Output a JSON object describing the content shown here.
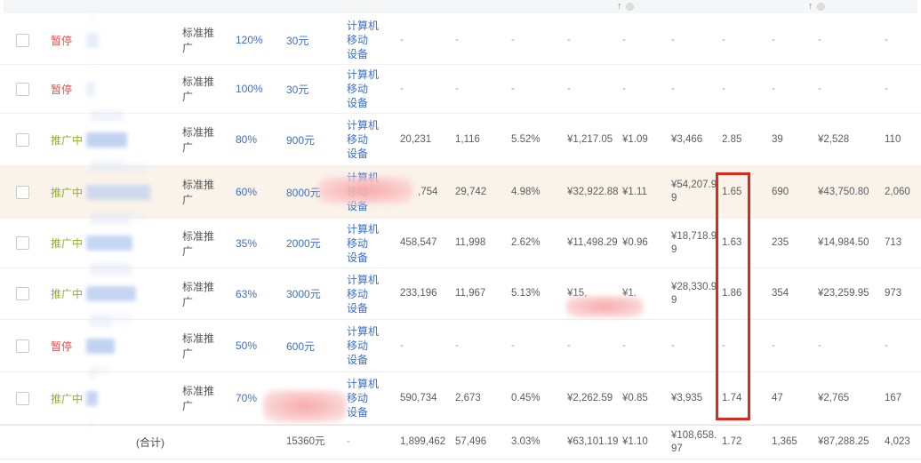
{
  "header_strip": {
    "sort_icons": [
      {
        "glyph": "↑",
        "badge": "help-circle"
      },
      {
        "glyph": "↑",
        "badge": "help-circle"
      }
    ]
  },
  "table": {
    "device_value": "计算机 移动设备",
    "device_line1": "计算机 移动",
    "device_line2": "设备",
    "rows": [
      {
        "status": "暂停",
        "status_type": "paused",
        "type": "标准推广",
        "ratio": "120%",
        "budget": "30元",
        "metrics": [
          "-",
          "-",
          "-",
          "-",
          "-",
          "-",
          "-",
          "-",
          "-",
          "-"
        ]
      },
      {
        "status": "暂停",
        "status_type": "paused",
        "type": "标准推广",
        "ratio": "100%",
        "budget": "30元",
        "metrics": [
          "-",
          "-",
          "-",
          "-",
          "-",
          "-",
          "-",
          "-",
          "-",
          "-"
        ]
      },
      {
        "status": "推广中",
        "status_type": "active",
        "type": "标准推广",
        "ratio": "80%",
        "budget": "900元",
        "metrics": [
          "20,231",
          "1,116",
          "5.52%",
          "¥1,217.05",
          "¥1.09",
          "¥3,466",
          "2.85",
          "39",
          "¥2,528",
          "110"
        ]
      },
      {
        "status": "推广中",
        "status_type": "active",
        "type": "标准推广",
        "ratio": "60%",
        "budget": "8000元",
        "highlighted": true,
        "device_redacted": true,
        "metrics": [
          ",754",
          "29,742",
          "4.98%",
          "¥32,922.88",
          "¥1.11",
          "¥54,207.99",
          "1.65",
          "690",
          "¥43,750.80",
          "2,060"
        ]
      },
      {
        "status": "推广中",
        "status_type": "active",
        "type": "标准推广",
        "ratio": "35%",
        "budget": "2000元",
        "metrics": [
          "458,547",
          "11,998",
          "2.62%",
          "¥11,498.29",
          "¥0.96",
          "¥18,718.99",
          "1.63",
          "235",
          "¥14,984.50",
          "713"
        ]
      },
      {
        "status": "推广中",
        "status_type": "active",
        "type": "标准推广",
        "ratio": "63%",
        "budget": "3000元",
        "cost_redacted": true,
        "metrics": [
          "233,196",
          "11,967",
          "5.13%",
          "¥15,",
          "¥1.",
          "¥28,330.99",
          "1.86",
          "354",
          "¥23,259.95",
          "973"
        ]
      },
      {
        "status": "暂停",
        "status_type": "paused",
        "type": "标准推广",
        "ratio": "50%",
        "budget": "600元",
        "metrics": [
          "-",
          "-",
          "-",
          "-",
          "-",
          "-",
          "-",
          "-",
          "-",
          "-"
        ]
      },
      {
        "status": "推广中",
        "status_type": "active",
        "type": "标准推广",
        "ratio": "70%",
        "budget": "",
        "budget_redacted": true,
        "metrics": [
          "590,734",
          "2,673",
          "0.45%",
          "¥2,262.59",
          "¥0.85",
          "¥3,935",
          "1.74",
          "47",
          "¥2,765",
          "167"
        ]
      }
    ],
    "total_row": {
      "label": "(合计)",
      "budget": "15360元",
      "device": "-",
      "metrics": [
        "1,899,462",
        "57,496",
        "3.03%",
        "¥63,101.19",
        "¥1.10",
        "¥108,658.97",
        "1.72",
        "1,365",
        "¥87,288.25",
        "4,023"
      ]
    }
  },
  "colors": {
    "paused_status": "#e04f4f",
    "active_status": "#8cb22a",
    "link_blue": "#3d6fc9",
    "highlight_row_bg": "#faf3ea",
    "annotation_red": "#dc291d",
    "redaction_pink": "#f6a6a6"
  }
}
